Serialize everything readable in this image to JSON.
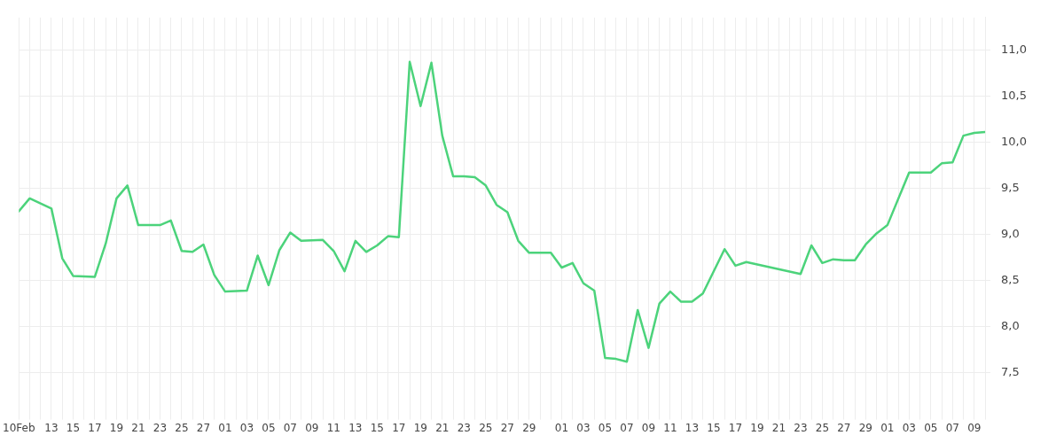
{
  "chart_data": {
    "type": "line",
    "marker": "none",
    "line_style": "solid",
    "grid": true,
    "legend": false,
    "xlim": [
      "--02-10",
      "--05-10"
    ],
    "ylim": [
      7.05,
      11.35
    ],
    "yticks": [
      {
        "value": 7.5,
        "label": "7,5"
      },
      {
        "value": 8,
        "label": "8,0"
      },
      {
        "value": 8.5,
        "label": "8,5"
      },
      {
        "value": 9,
        "label": "9,0"
      },
      {
        "value": 9.5,
        "label": "9,5"
      },
      {
        "value": 10,
        "label": "10,0"
      },
      {
        "value": 10.5,
        "label": "10,5"
      },
      {
        "value": 11,
        "label": "11,0"
      }
    ],
    "xticks": [
      {
        "value": "--02-10",
        "label": "10Feb"
      },
      {
        "value": "--02-11",
        "label": null
      },
      {
        "value": "--02-12",
        "label": null
      },
      {
        "value": "--02-13",
        "label": "13"
      },
      {
        "value": "--02-14",
        "label": null
      },
      {
        "value": "--02-15",
        "label": "15"
      },
      {
        "value": "--02-16",
        "label": null
      },
      {
        "value": "--02-17",
        "label": "17"
      },
      {
        "value": "--02-18",
        "label": null
      },
      {
        "value": "--02-19",
        "label": "19"
      },
      {
        "value": "--02-20",
        "label": null
      },
      {
        "value": "--02-21",
        "label": "21"
      },
      {
        "value": "--02-22",
        "label": null
      },
      {
        "value": "--02-23",
        "label": "23"
      },
      {
        "value": "--02-24",
        "label": null
      },
      {
        "value": "--02-25",
        "label": "25"
      },
      {
        "value": "--02-26",
        "label": null
      },
      {
        "value": "--02-27",
        "label": "27"
      },
      {
        "value": "--02-28",
        "label": null
      },
      {
        "value": "--03-01",
        "label": "01"
      },
      {
        "value": "--03-02",
        "label": null
      },
      {
        "value": "--03-03",
        "label": "03"
      },
      {
        "value": "--03-04",
        "label": null
      },
      {
        "value": "--03-05",
        "label": "05"
      },
      {
        "value": "--03-06",
        "label": null
      },
      {
        "value": "--03-07",
        "label": "07"
      },
      {
        "value": "--03-08",
        "label": null
      },
      {
        "value": "--03-09",
        "label": "09"
      },
      {
        "value": "--03-10",
        "label": null
      },
      {
        "value": "--03-11",
        "label": "11"
      },
      {
        "value": "--03-12",
        "label": null
      },
      {
        "value": "--03-13",
        "label": "13"
      },
      {
        "value": "--03-14",
        "label": null
      },
      {
        "value": "--03-15",
        "label": "15"
      },
      {
        "value": "--03-16",
        "label": null
      },
      {
        "value": "--03-17",
        "label": "17"
      },
      {
        "value": "--03-18",
        "label": null
      },
      {
        "value": "--03-19",
        "label": "19"
      },
      {
        "value": "--03-20",
        "label": null
      },
      {
        "value": "--03-21",
        "label": "21"
      },
      {
        "value": "--03-22",
        "label": null
      },
      {
        "value": "--03-23",
        "label": "23"
      },
      {
        "value": "--03-24",
        "label": null
      },
      {
        "value": "--03-25",
        "label": "25"
      },
      {
        "value": "--03-26",
        "label": null
      },
      {
        "value": "--03-27",
        "label": "27"
      },
      {
        "value": "--03-28",
        "label": null
      },
      {
        "value": "--03-29",
        "label": "29"
      },
      {
        "value": "--03-30",
        "label": null
      },
      {
        "value": "--03-31",
        "label": null
      },
      {
        "value": "--04-01",
        "label": "01"
      },
      {
        "value": "--04-02",
        "label": null
      },
      {
        "value": "--04-03",
        "label": "03"
      },
      {
        "value": "--04-04",
        "label": null
      },
      {
        "value": "--04-05",
        "label": "05"
      },
      {
        "value": "--04-06",
        "label": null
      },
      {
        "value": "--04-07",
        "label": "07"
      },
      {
        "value": "--04-08",
        "label": null
      },
      {
        "value": "--04-09",
        "label": "09"
      },
      {
        "value": "--04-10",
        "label": null
      },
      {
        "value": "--04-11",
        "label": "11"
      },
      {
        "value": "--04-12",
        "label": null
      },
      {
        "value": "--04-13",
        "label": "13"
      },
      {
        "value": "--04-14",
        "label": null
      },
      {
        "value": "--04-15",
        "label": "15"
      },
      {
        "value": "--04-16",
        "label": null
      },
      {
        "value": "--04-17",
        "label": "17"
      },
      {
        "value": "--04-18",
        "label": null
      },
      {
        "value": "--04-19",
        "label": "19"
      },
      {
        "value": "--04-20",
        "label": null
      },
      {
        "value": "--04-21",
        "label": "21"
      },
      {
        "value": "--04-22",
        "label": null
      },
      {
        "value": "--04-23",
        "label": "23"
      },
      {
        "value": "--04-24",
        "label": null
      },
      {
        "value": "--04-25",
        "label": "25"
      },
      {
        "value": "--04-26",
        "label": null
      },
      {
        "value": "--04-27",
        "label": "27"
      },
      {
        "value": "--04-28",
        "label": null
      },
      {
        "value": "--04-29",
        "label": "29"
      },
      {
        "value": "--04-30",
        "label": null
      },
      {
        "value": "--05-01",
        "label": "01"
      },
      {
        "value": "--05-02",
        "label": null
      },
      {
        "value": "--05-03",
        "label": "03"
      },
      {
        "value": "--05-04",
        "label": null
      },
      {
        "value": "--05-05",
        "label": "05"
      },
      {
        "value": "--05-06",
        "label": null
      },
      {
        "value": "--05-07",
        "label": "07"
      },
      {
        "value": "--05-08",
        "label": null
      },
      {
        "value": "--05-09",
        "label": "09"
      },
      {
        "value": "--05-10",
        "label": null
      }
    ],
    "series": [
      {
        "color": "#4cd37b",
        "x": [
          "--02-10",
          "--02-11",
          "--02-13",
          "--02-14",
          "--02-15",
          "--02-17",
          "--02-18",
          "--02-19",
          "--02-20",
          "--02-21",
          "--02-23",
          "--02-24",
          "--02-25",
          "--02-26",
          "--02-27",
          "--02-28",
          "--03-01",
          "--03-03",
          "--03-04",
          "--03-05",
          "--03-06",
          "--03-07",
          "--03-08",
          "--03-10",
          "--03-11",
          "--03-12",
          "--03-13",
          "--03-14",
          "--03-15",
          "--03-16",
          "--03-17",
          "--03-18",
          "--03-19",
          "--03-20",
          "--03-21",
          "--03-22",
          "--03-23",
          "--03-24",
          "--03-25",
          "--03-26",
          "--03-27",
          "--03-28",
          "--03-29",
          "--03-31",
          "--04-01",
          "--04-02",
          "--04-03",
          "--04-04",
          "--04-05",
          "--04-06",
          "--04-07",
          "--04-08",
          "--04-09",
          "--04-10",
          "--04-11",
          "--04-12",
          "--04-13",
          "--04-14",
          "--04-16",
          "--04-17",
          "--04-18",
          "--04-23",
          "--04-24",
          "--04-25",
          "--04-26",
          "--04-27",
          "--04-28",
          "--04-29",
          "--04-30",
          "--05-01",
          "--05-03",
          "--05-05",
          "--05-06",
          "--05-07",
          "--05-08",
          "--05-09",
          "--05-10"
        ],
        "values": [
          9.25,
          9.39,
          9.28,
          8.74,
          8.55,
          8.54,
          8.9,
          9.39,
          9.53,
          9.1,
          9.1,
          9.15,
          8.82,
          8.81,
          8.89,
          8.56,
          8.38,
          8.39,
          8.77,
          8.45,
          8.83,
          9.02,
          8.93,
          8.94,
          8.82,
          8.6,
          8.93,
          8.81,
          8.88,
          8.98,
          8.97,
          10.87,
          10.39,
          10.86,
          10.07,
          9.63,
          9.63,
          9.62,
          9.53,
          9.32,
          9.24,
          8.93,
          8.8,
          8.8,
          8.64,
          8.69,
          8.47,
          8.39,
          7.66,
          7.65,
          7.62,
          8.18,
          7.77,
          8.25,
          8.38,
          8.27,
          8.27,
          8.36,
          8.84,
          8.66,
          8.7,
          8.57,
          8.88,
          8.69,
          8.73,
          8.72,
          8.72,
          8.89,
          9.01,
          9.1,
          9.67,
          9.67,
          9.77,
          9.78,
          10.07,
          10.1,
          10.11
        ]
      }
    ]
  }
}
